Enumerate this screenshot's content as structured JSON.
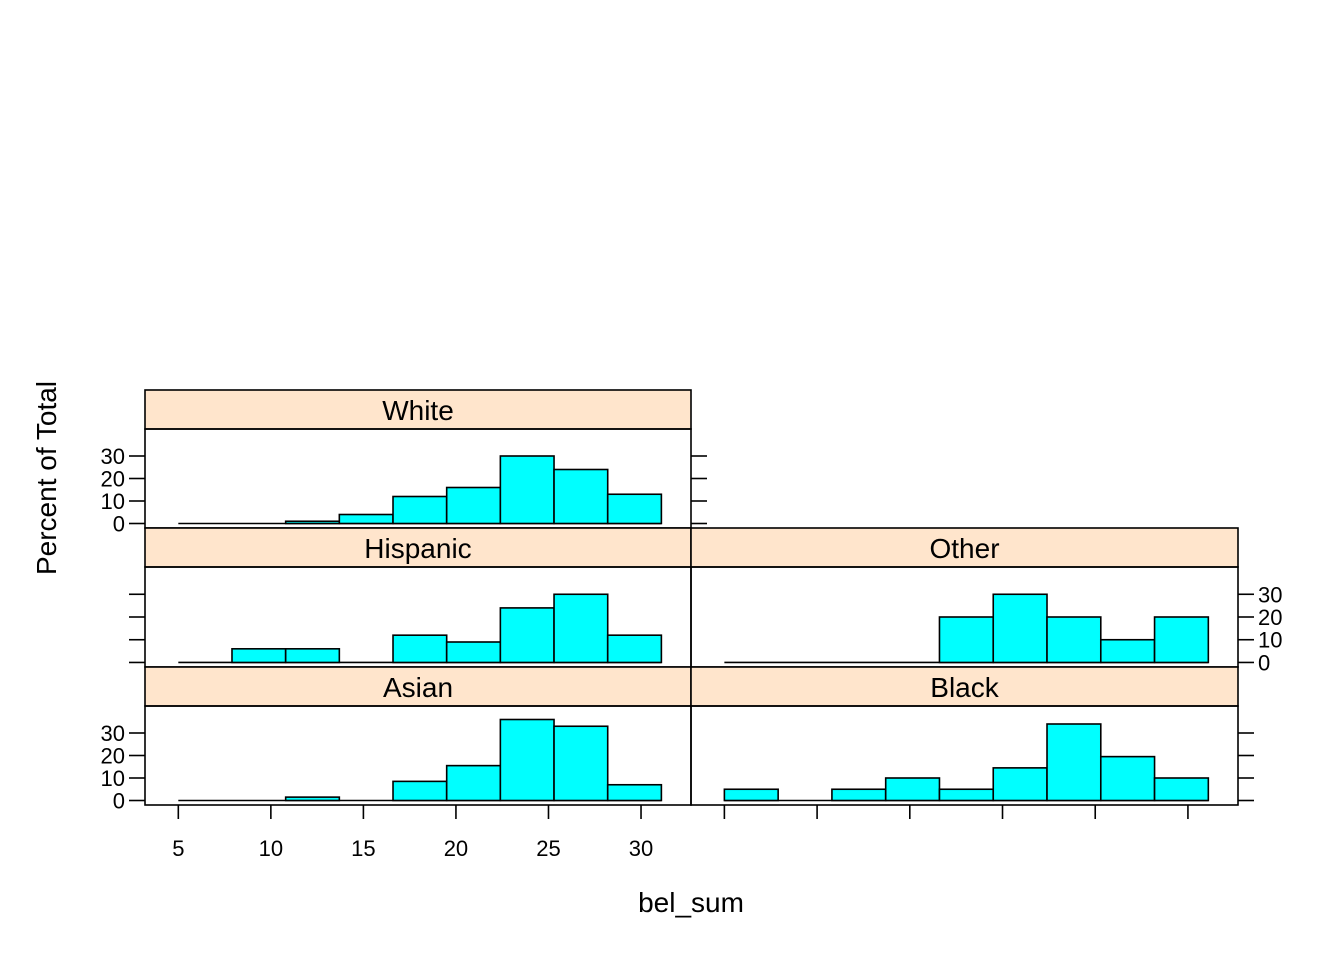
{
  "chart_data": {
    "type": "bar",
    "xlabel": "bel_sum",
    "ylabel": "Percent of Total",
    "xlim": [
      3.2,
      32.7
    ],
    "ylim": [
      -2,
      42
    ],
    "x_ticks": [
      5,
      10,
      15,
      20,
      25,
      30
    ],
    "y_ticks": [
      0,
      10,
      20,
      30
    ],
    "bar_color": "#00FFFF",
    "strip_color": "#FFE5CC",
    "panels": [
      {
        "name": "White",
        "bins": [
          {
            "x0": 5.0,
            "x1": 7.9,
            "value": 0
          },
          {
            "x0": 7.9,
            "x1": 10.8,
            "value": 0
          },
          {
            "x0": 10.8,
            "x1": 13.7,
            "value": 1
          },
          {
            "x0": 13.7,
            "x1": 16.6,
            "value": 4
          },
          {
            "x0": 16.6,
            "x1": 19.5,
            "value": 12
          },
          {
            "x0": 19.5,
            "x1": 22.4,
            "value": 16
          },
          {
            "x0": 22.4,
            "x1": 25.3,
            "value": 30
          },
          {
            "x0": 25.3,
            "x1": 28.2,
            "value": 24
          },
          {
            "x0": 28.2,
            "x1": 31.1,
            "value": 13
          }
        ]
      },
      {
        "name": "Hispanic",
        "bins": [
          {
            "x0": 5.0,
            "x1": 7.9,
            "value": 0
          },
          {
            "x0": 7.9,
            "x1": 10.8,
            "value": 6
          },
          {
            "x0": 10.8,
            "x1": 13.7,
            "value": 6
          },
          {
            "x0": 13.7,
            "x1": 16.6,
            "value": 0
          },
          {
            "x0": 16.6,
            "x1": 19.5,
            "value": 12
          },
          {
            "x0": 19.5,
            "x1": 22.4,
            "value": 9
          },
          {
            "x0": 22.4,
            "x1": 25.3,
            "value": 24
          },
          {
            "x0": 25.3,
            "x1": 28.2,
            "value": 30
          },
          {
            "x0": 28.2,
            "x1": 31.1,
            "value": 12
          }
        ]
      },
      {
        "name": "Other",
        "bins": [
          {
            "x0": 5.0,
            "x1": 7.9,
            "value": 0
          },
          {
            "x0": 7.9,
            "x1": 10.8,
            "value": 0
          },
          {
            "x0": 10.8,
            "x1": 13.7,
            "value": 0
          },
          {
            "x0": 13.7,
            "x1": 16.6,
            "value": 0
          },
          {
            "x0": 16.6,
            "x1": 19.5,
            "value": 20
          },
          {
            "x0": 19.5,
            "x1": 22.4,
            "value": 30
          },
          {
            "x0": 22.4,
            "x1": 25.3,
            "value": 20
          },
          {
            "x0": 25.3,
            "x1": 28.2,
            "value": 10
          },
          {
            "x0": 28.2,
            "x1": 31.1,
            "value": 20
          }
        ]
      },
      {
        "name": "Asian",
        "bins": [
          {
            "x0": 5.0,
            "x1": 7.9,
            "value": 0
          },
          {
            "x0": 7.9,
            "x1": 10.8,
            "value": 0
          },
          {
            "x0": 10.8,
            "x1": 13.7,
            "value": 1.5
          },
          {
            "x0": 13.7,
            "x1": 16.6,
            "value": 0
          },
          {
            "x0": 16.6,
            "x1": 19.5,
            "value": 8.5
          },
          {
            "x0": 19.5,
            "x1": 22.4,
            "value": 15.5
          },
          {
            "x0": 22.4,
            "x1": 25.3,
            "value": 36
          },
          {
            "x0": 25.3,
            "x1": 28.2,
            "value": 33
          },
          {
            "x0": 28.2,
            "x1": 31.1,
            "value": 7
          }
        ]
      },
      {
        "name": "Black",
        "bins": [
          {
            "x0": 5.0,
            "x1": 7.9,
            "value": 5
          },
          {
            "x0": 7.9,
            "x1": 10.8,
            "value": 0
          },
          {
            "x0": 10.8,
            "x1": 13.7,
            "value": 5
          },
          {
            "x0": 13.7,
            "x1": 16.6,
            "value": 10
          },
          {
            "x0": 16.6,
            "x1": 19.5,
            "value": 5
          },
          {
            "x0": 19.5,
            "x1": 22.4,
            "value": 14.5
          },
          {
            "x0": 22.4,
            "x1": 25.3,
            "value": 34
          },
          {
            "x0": 25.3,
            "x1": 28.2,
            "value": 19.5
          },
          {
            "x0": 28.2,
            "x1": 31.1,
            "value": 10
          }
        ]
      }
    ]
  }
}
